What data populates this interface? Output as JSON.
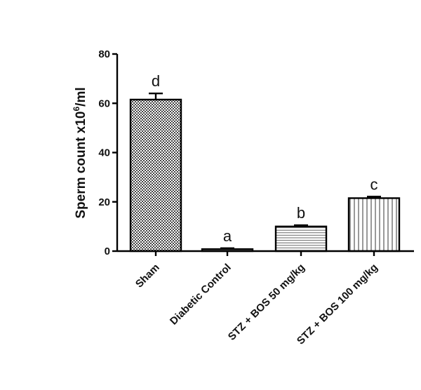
{
  "chart_data": {
    "type": "bar",
    "ylabel": "Sperm count x10",
    "ylabel_superscript": "6",
    "ylabel_unit": "/ml",
    "ylim": [
      0,
      80
    ],
    "yticks": [
      "0",
      "20",
      "40",
      "60",
      "80"
    ],
    "categories": [
      "Sham",
      "Diabetic Control",
      "STZ + BOS 50 mg/kg",
      "STZ + BOS 100 mg/kg"
    ],
    "values": [
      61.5,
      0.8,
      10.0,
      21.5
    ],
    "errors": [
      2.5,
      0.4,
      0.5,
      0.6
    ],
    "significance": [
      "d",
      "a",
      "b",
      "c"
    ],
    "patterns": [
      "crosshatch",
      "none",
      "horizontal-lines",
      "vertical-lines"
    ],
    "colors": {
      "bar_stroke": "#000000",
      "pattern": "#555555",
      "background": "#ffffff"
    }
  }
}
